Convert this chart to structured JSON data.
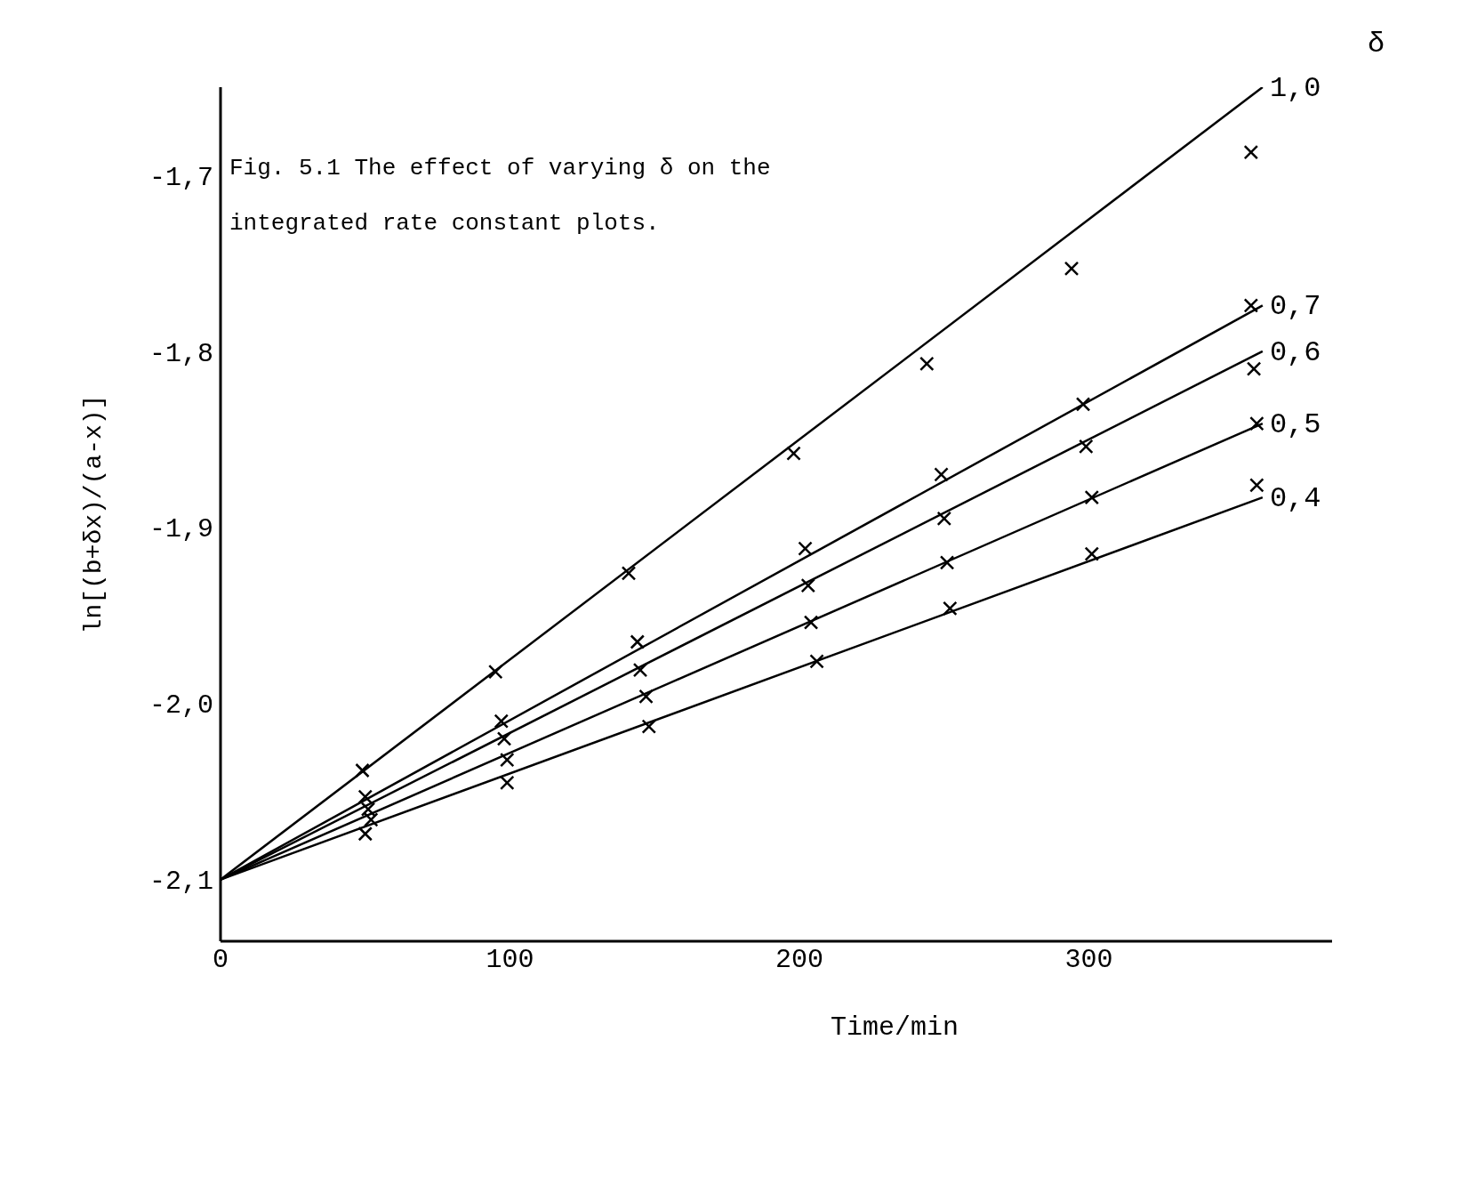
{
  "chart_data": {
    "type": "line",
    "title": "Fig. 5.1 The effect of varying δ on the integrated rate constant plots.",
    "xlabel": "Time/min",
    "ylabel": "ln[(b+δx)/(a-x)]",
    "legend_title": "δ",
    "xlim": [
      0,
      384
    ],
    "ylim": [
      -2.135,
      -1.65
    ],
    "xticks": [
      0,
      100,
      200,
      300
    ],
    "yticks": [
      {
        "value": -2.1,
        "label": "-2,1"
      },
      {
        "value": -2.0,
        "label": "-2,0"
      },
      {
        "value": -1.9,
        "label": "-1,9"
      },
      {
        "value": -1.8,
        "label": "-1,8"
      },
      {
        "value": -1.7,
        "label": "-1,7"
      }
    ],
    "line_style": "solid",
    "legend": false,
    "series": [
      {
        "name": "1,0",
        "marker": "none",
        "color": "#000000",
        "x": [
          0,
          360
        ],
        "values": [
          -2.1,
          -1.65
        ]
      },
      {
        "name": "0,7",
        "marker": "none",
        "color": "#000000",
        "x": [
          0,
          360
        ],
        "values": [
          -2.1,
          -1.774
        ]
      },
      {
        "name": "0,6",
        "marker": "none",
        "color": "#000000",
        "x": [
          0,
          360
        ],
        "values": [
          -2.1,
          -1.8
        ]
      },
      {
        "name": "0,5",
        "marker": "none",
        "color": "#000000",
        "x": [
          0,
          360
        ],
        "values": [
          -2.1,
          -1.841
        ]
      },
      {
        "name": "0,4",
        "marker": "none",
        "color": "#000000",
        "x": [
          0,
          360
        ],
        "values": [
          -2.1,
          -1.883
        ]
      },
      {
        "type": "scatter",
        "marker": "cross",
        "color": "#000000",
        "x": [
          49,
          95,
          141,
          198,
          244,
          294,
          356
        ],
        "values": [
          -2.038,
          -1.982,
          -1.926,
          -1.858,
          -1.807,
          -1.753,
          -1.687
        ]
      },
      {
        "type": "scatter",
        "marker": "cross",
        "color": "#000000",
        "x": [
          50,
          97,
          144,
          202,
          249,
          298,
          356
        ],
        "values": [
          -2.053,
          -2.01,
          -1.965,
          -1.912,
          -1.87,
          -1.83,
          -1.774
        ]
      },
      {
        "type": "scatter",
        "marker": "cross",
        "color": "#000000",
        "x": [
          51,
          98,
          145,
          203,
          250,
          299,
          357
        ],
        "values": [
          -2.06,
          -2.02,
          -1.981,
          -1.933,
          -1.895,
          -1.854,
          -1.81
        ]
      },
      {
        "type": "scatter",
        "marker": "cross",
        "color": "#000000",
        "x": [
          52,
          99,
          147,
          204,
          251,
          301,
          358
        ],
        "values": [
          -2.066,
          -2.032,
          -1.996,
          -1.954,
          -1.92,
          -1.883,
          -1.841
        ]
      },
      {
        "type": "scatter",
        "marker": "cross",
        "color": "#000000",
        "x": [
          50,
          99,
          148,
          206,
          252,
          301,
          358
        ],
        "values": [
          -2.074,
          -2.045,
          -2.013,
          -1.976,
          -1.946,
          -1.915,
          -1.876
        ]
      }
    ]
  }
}
